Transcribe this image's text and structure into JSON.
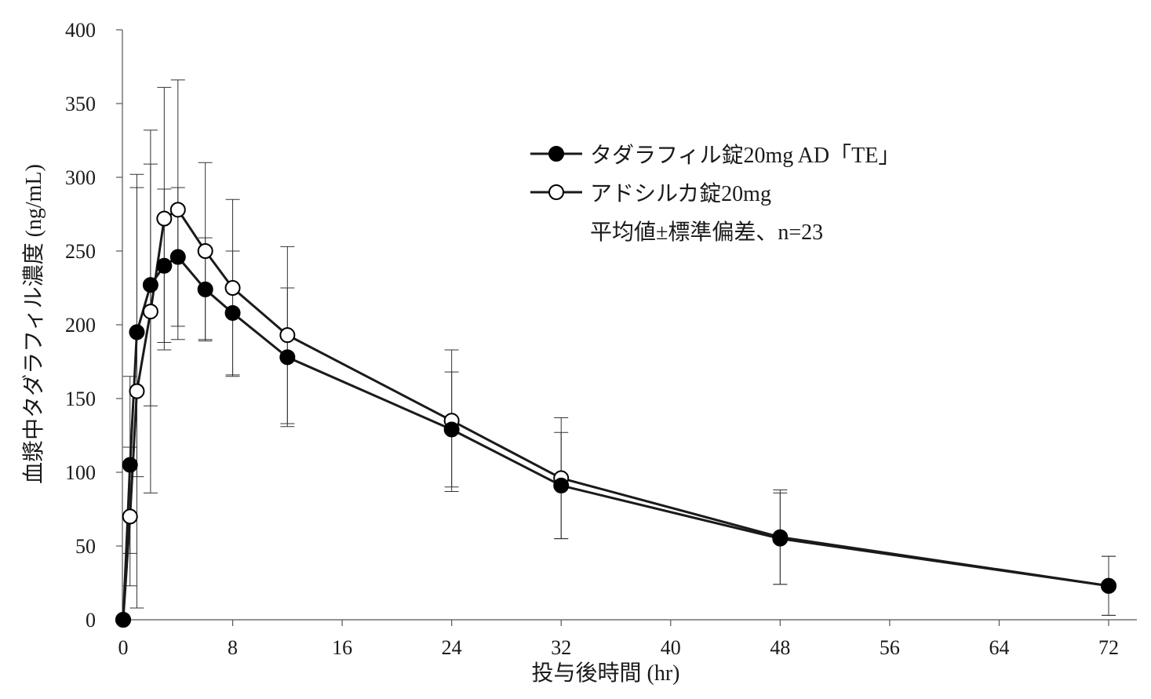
{
  "chart_data": {
    "type": "line",
    "xlabel": "投与後時間 (hr)",
    "ylabel": "血漿中タダラフィル濃度 (ng/mL)",
    "xlim": [
      0,
      74
    ],
    "ylim": [
      0,
      400
    ],
    "xticks": [
      0,
      8,
      16,
      24,
      32,
      40,
      48,
      56,
      64,
      72
    ],
    "yticks": [
      0,
      50,
      100,
      150,
      200,
      250,
      300,
      350,
      400
    ],
    "legend_note": "平均値±標準偏差、n=23",
    "legend_position": "upper-right",
    "series": [
      {
        "name": "タダラフィル錠20mg AD「TE」",
        "marker": "filled-circle",
        "x": [
          0,
          0.5,
          1,
          2,
          3,
          4,
          6,
          8,
          12,
          24,
          32,
          48,
          72
        ],
        "y": [
          0,
          105,
          195,
          227,
          240,
          246,
          224,
          208,
          178,
          129,
          91,
          55,
          23
        ],
        "error": [
          0,
          60,
          98,
          82,
          52,
          47,
          35,
          42,
          47,
          39,
          36,
          31,
          20
        ]
      },
      {
        "name": "アドシルカ錠20mg",
        "marker": "open-circle",
        "x": [
          0,
          0.5,
          1,
          2,
          3,
          4,
          6,
          8,
          12,
          24,
          32,
          48,
          72
        ],
        "y": [
          0,
          70,
          155,
          209,
          272,
          278,
          250,
          225,
          193,
          135,
          96,
          56,
          23
        ],
        "error": [
          0,
          47,
          147,
          123,
          89,
          88,
          60,
          60,
          60,
          48,
          41,
          32,
          20
        ]
      }
    ]
  }
}
